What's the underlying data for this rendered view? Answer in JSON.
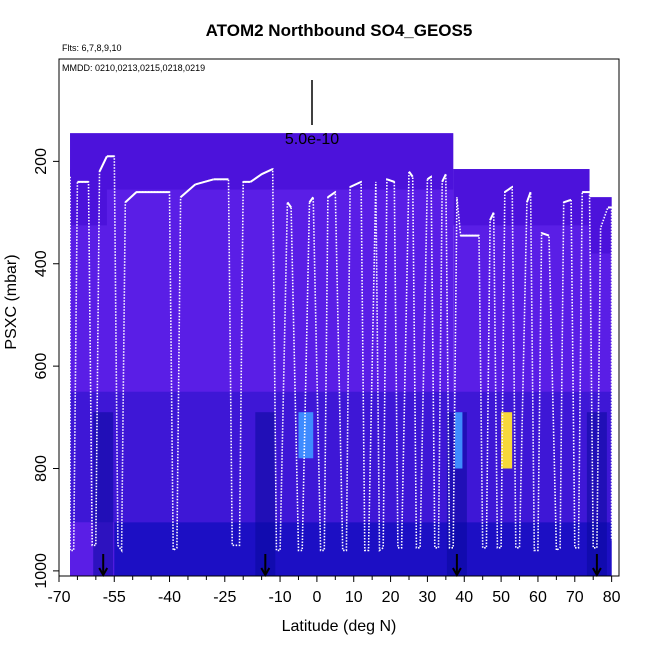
{
  "chart_data": {
    "type": "heatmap",
    "title": "ATOM2 Northbound SO4_GEOS5",
    "flights_note": "Flts: 6,7,8,9,10",
    "dates_note": "MMDD: 0210,0213,0215,0218,0219",
    "xlabel": "Latitude (deg N)",
    "ylabel": "PSXC (mbar)",
    "xlim": [
      -70,
      82
    ],
    "ylim": [
      1010,
      0
    ],
    "x_ticks": [
      -70,
      -55,
      -40,
      -25,
      -10,
      0,
      10,
      20,
      30,
      40,
      50,
      60,
      70,
      80
    ],
    "x_tick_labels": [
      "-70",
      "-55",
      "-40",
      "-25",
      "-10",
      "0",
      "10",
      "20",
      "30",
      "40",
      "50",
      "60",
      "70",
      "80"
    ],
    "y_ticks": [
      200,
      400,
      600,
      800,
      1000
    ],
    "y_tick_labels": [
      "200",
      "400",
      "600",
      "800",
      "1000"
    ],
    "scale_label": "5.0e-10",
    "flight_boundaries_lat": [
      -58,
      -14,
      38,
      76
    ],
    "colors": {
      "curtain_base": "#5a1ee6",
      "curtain_upper": "#4a10d8",
      "curtain_low": "#1c0fc4",
      "curtain_boundary": "#0a0a9e",
      "hotspot_blue": "#3f8bff",
      "hotspot_yellow": "#f7d83a",
      "track": "#ffffff"
    },
    "curtain_panels": [
      {
        "lat": [
          -67,
          37
        ],
        "p_top": 145
      },
      {
        "lat": [
          -67,
          -57
        ],
        "p_top": 215
      },
      {
        "lat": [
          37,
          74
        ],
        "p_top": 215
      },
      {
        "lat": [
          74,
          80
        ],
        "p_top": 270
      },
      {
        "lat": [
          -55,
          80
        ],
        "p_top": 905
      }
    ],
    "hotspots": [
      {
        "lat": [
          -5,
          -1
        ],
        "p": [
          690,
          780
        ],
        "color": "hotspot_blue"
      },
      {
        "lat": [
          37.5,
          39.5
        ],
        "p": [
          690,
          800
        ],
        "color": "hotspot_blue"
      },
      {
        "lat": [
          50,
          53
        ],
        "p": [
          690,
          800
        ],
        "color": "hotspot_yellow"
      }
    ],
    "flight_track": [
      [
        -67,
        230
      ],
      [
        -67,
        960
      ],
      [
        -66,
        960
      ],
      [
        -65,
        240
      ],
      [
        -62,
        240
      ],
      [
        -61,
        950
      ],
      [
        -60,
        950
      ],
      [
        -59,
        220
      ],
      [
        -57,
        190
      ],
      [
        -55,
        190
      ],
      [
        -54,
        950
      ],
      [
        -53,
        960
      ],
      [
        -52,
        280
      ],
      [
        -49,
        260
      ],
      [
        -40,
        260
      ],
      [
        -39,
        960
      ],
      [
        -38,
        955
      ],
      [
        -37,
        270
      ],
      [
        -33,
        245
      ],
      [
        -28,
        235
      ],
      [
        -24,
        235
      ],
      [
        -23,
        950
      ],
      [
        -21,
        950
      ],
      [
        -20,
        240
      ],
      [
        -18,
        240
      ],
      [
        -15,
        225
      ],
      [
        -12,
        215
      ],
      [
        -11,
        960
      ],
      [
        -10,
        960
      ],
      [
        -8,
        280
      ],
      [
        -7,
        290
      ],
      [
        -5,
        960
      ],
      [
        -4,
        960
      ],
      [
        -2,
        280
      ],
      [
        -1,
        270
      ],
      [
        1,
        960
      ],
      [
        2,
        960
      ],
      [
        3,
        270
      ],
      [
        5,
        260
      ],
      [
        7,
        960
      ],
      [
        8,
        960
      ],
      [
        9,
        250
      ],
      [
        12,
        240
      ],
      [
        13,
        960
      ],
      [
        14,
        960
      ],
      [
        16,
        240
      ],
      [
        17,
        960
      ],
      [
        18,
        955
      ],
      [
        19,
        235
      ],
      [
        21,
        240
      ],
      [
        22,
        955
      ],
      [
        23,
        955
      ],
      [
        25,
        220
      ],
      [
        26,
        230
      ],
      [
        27,
        955
      ],
      [
        28,
        955
      ],
      [
        30,
        235
      ],
      [
        31,
        230
      ],
      [
        32,
        955
      ],
      [
        33,
        955
      ],
      [
        34,
        240
      ],
      [
        35,
        225
      ],
      [
        36,
        955
      ],
      [
        37,
        955
      ],
      [
        38,
        270
      ],
      [
        39,
        345
      ],
      [
        44,
        345
      ],
      [
        45,
        955
      ],
      [
        46,
        955
      ],
      [
        47,
        315
      ],
      [
        48,
        300
      ],
      [
        49,
        955
      ],
      [
        50,
        955
      ],
      [
        51,
        260
      ],
      [
        53,
        250
      ],
      [
        54,
        955
      ],
      [
        55,
        955
      ],
      [
        57,
        280
      ],
      [
        58,
        260
      ],
      [
        59,
        960
      ],
      [
        60,
        960
      ],
      [
        61,
        340
      ],
      [
        63,
        345
      ],
      [
        65,
        960
      ],
      [
        66,
        955
      ],
      [
        67,
        280
      ],
      [
        69,
        275
      ],
      [
        70,
        955
      ],
      [
        71,
        955
      ],
      [
        72,
        260
      ],
      [
        74,
        260
      ],
      [
        75,
        955
      ],
      [
        76,
        955
      ],
      [
        77,
        330
      ],
      [
        79,
        290
      ],
      [
        80,
        290
      ],
      [
        80,
        940
      ]
    ]
  }
}
